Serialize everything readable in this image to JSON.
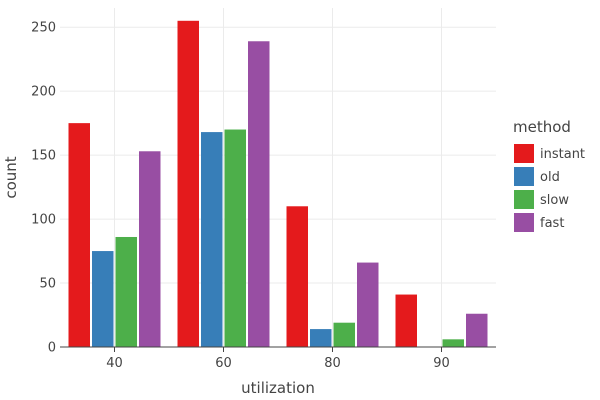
{
  "chart_data": {
    "type": "bar",
    "categories": [
      "40",
      "60",
      "80",
      "90"
    ],
    "xlabel": "utilization",
    "ylabel": "count",
    "ylim": [
      0,
      265
    ],
    "yticks": [
      0,
      50,
      100,
      150,
      200,
      250
    ],
    "grid": true,
    "legend": {
      "title": "method",
      "position": "right"
    },
    "series": [
      {
        "name": "instant",
        "color": "#e41a1c",
        "values": [
          175,
          255,
          110,
          41
        ]
      },
      {
        "name": "old",
        "color": "#377eb8",
        "values": [
          75,
          168,
          14,
          0
        ]
      },
      {
        "name": "slow",
        "color": "#4daf4a",
        "values": [
          86,
          170,
          19,
          6
        ]
      },
      {
        "name": "fast",
        "color": "#984ea3",
        "values": [
          153,
          239,
          66,
          26
        ]
      }
    ]
  }
}
